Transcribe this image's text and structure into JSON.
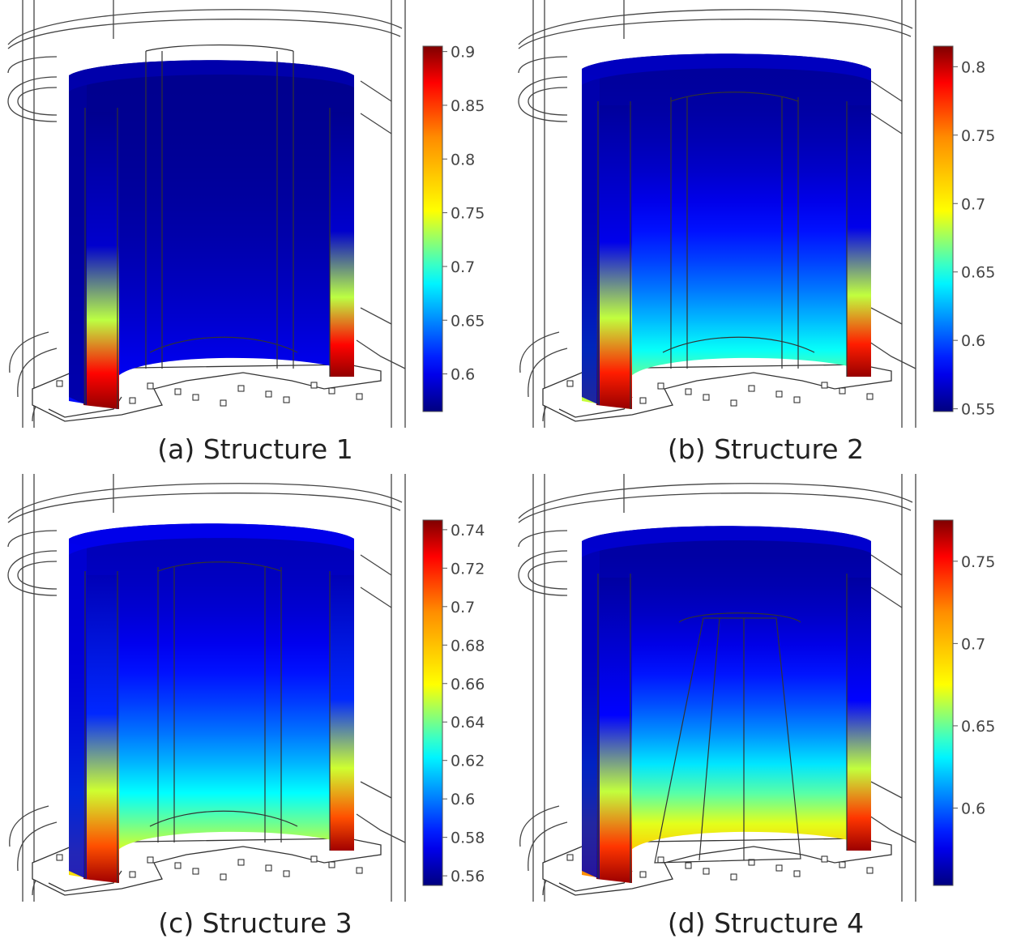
{
  "figure": {
    "panels": [
      {
        "caption": "(a) Structure 1",
        "colorbar": {
          "min": 0.565,
          "max": 0.905,
          "ticks": [
            "0.9",
            "0.85",
            "0.8",
            "0.75",
            "0.7",
            "0.65",
            "0.6"
          ],
          "tick_values": [
            0.9,
            0.85,
            0.8,
            0.75,
            0.7,
            0.65,
            0.6
          ]
        },
        "field": {
          "top_value": 0.57,
          "bottom_value": 0.61,
          "hot_edge_value": 0.9
        },
        "variant": "s1"
      },
      {
        "caption": "(b) Structure 2",
        "colorbar": {
          "min": 0.548,
          "max": 0.815,
          "ticks": [
            "0.8",
            "0.75",
            "0.7",
            "0.65",
            "0.6",
            "0.55"
          ],
          "tick_values": [
            0.8,
            0.75,
            0.7,
            0.65,
            0.6,
            0.55
          ]
        },
        "field": {
          "top_value": 0.555,
          "bottom_value": 0.69,
          "hot_edge_value": 0.81
        },
        "variant": "s2"
      },
      {
        "caption": "(c) Structure 3",
        "colorbar": {
          "min": 0.555,
          "max": 0.745,
          "ticks": [
            "0.74",
            "0.72",
            "0.7",
            "0.68",
            "0.66",
            "0.64",
            "0.62",
            "0.6",
            "0.58",
            "0.56"
          ],
          "tick_values": [
            0.74,
            0.72,
            0.7,
            0.68,
            0.66,
            0.64,
            0.62,
            0.6,
            0.58,
            0.56
          ]
        },
        "field": {
          "top_value": 0.565,
          "bottom_value": 0.675,
          "hot_edge_value": 0.74
        },
        "variant": "s3"
      },
      {
        "caption": "(d) Structure 4",
        "colorbar": {
          "min": 0.553,
          "max": 0.775,
          "ticks": [
            "0.75",
            "0.7",
            "0.65",
            "0.6"
          ],
          "tick_values": [
            0.75,
            0.7,
            0.65,
            0.6
          ]
        },
        "field": {
          "top_value": 0.56,
          "bottom_value": 0.725,
          "hot_edge_value": 0.77
        },
        "variant": "s4"
      }
    ]
  }
}
